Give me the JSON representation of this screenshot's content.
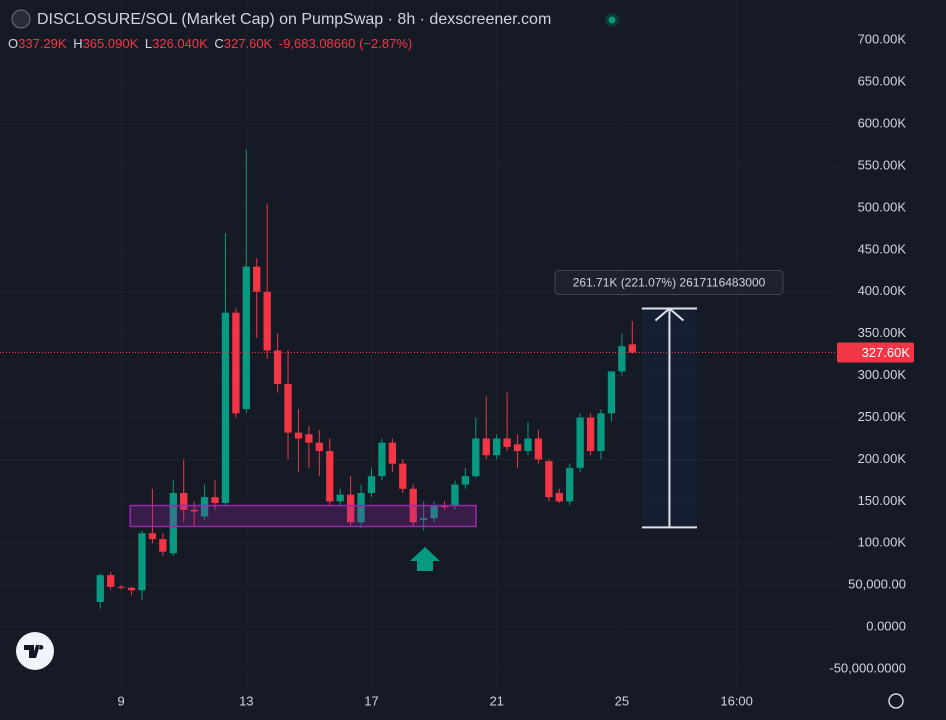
{
  "chart_data": {
    "type": "candlestick",
    "title": "DISCLOSURE/SOL (Market Cap) on PumpSwap · 8h · dexscreener.com",
    "ohlc_header": {
      "o_key": "O",
      "o": "337.29K",
      "h_key": "H",
      "h": "365.090K",
      "l_key": "L",
      "l": "326.040K",
      "c_key": "C",
      "c": "327.60K",
      "change": "-9,683.08660 (−2.87%)"
    },
    "up_color": "#089981",
    "down_color": "#f23645",
    "grid": true,
    "x": [
      8.333,
      8.667,
      9,
      9.333,
      9.667,
      10,
      10.333,
      10.667,
      11,
      11.333,
      11.667,
      12,
      12.333,
      12.667,
      13,
      13.333,
      13.667,
      14,
      14.333,
      14.667,
      15,
      15.333,
      15.667,
      16,
      16.333,
      16.667,
      17,
      17.333,
      17.667,
      18,
      18.333,
      18.667,
      19,
      19.333,
      19.667,
      20,
      20.333,
      20.667,
      21,
      21.333,
      21.667,
      22,
      22.333,
      22.667,
      23,
      23.333,
      23.667,
      24,
      24.333,
      24.667,
      25,
      25.333
    ],
    "open": [
      30000,
      62000,
      48000,
      47000,
      44000,
      112000,
      105000,
      88000,
      160000,
      140000,
      132000,
      155000,
      148000,
      375000,
      260000,
      430000,
      400000,
      330000,
      290000,
      232000,
      230000,
      220000,
      210000,
      150000,
      158000,
      125000,
      160000,
      180000,
      220000,
      195000,
      165000,
      128000,
      130000,
      145000,
      145000,
      170000,
      180000,
      225000,
      205000,
      225000,
      218000,
      210000,
      225000,
      198000,
      160000,
      150000,
      190000,
      250000,
      210000,
      255000,
      305000,
      337290
    ],
    "high": [
      64000,
      66000,
      50000,
      48000,
      115000,
      165000,
      112000,
      175000,
      200000,
      150000,
      170000,
      175000,
      470000,
      380000,
      570000,
      440000,
      505000,
      350000,
      330000,
      260000,
      240000,
      235000,
      225000,
      165000,
      180000,
      170000,
      190000,
      225000,
      225000,
      200000,
      170000,
      150000,
      150000,
      150000,
      175000,
      190000,
      250000,
      275000,
      230000,
      280000,
      230000,
      245000,
      235000,
      200000,
      165000,
      195000,
      255000,
      255000,
      260000,
      305000,
      350000,
      365090
    ],
    "low": [
      22000,
      45000,
      45000,
      38000,
      32000,
      100000,
      85000,
      85000,
      125000,
      120000,
      128000,
      140000,
      145000,
      250000,
      255000,
      345000,
      320000,
      280000,
      200000,
      185000,
      190000,
      180000,
      145000,
      145000,
      120000,
      118000,
      155000,
      175000,
      185000,
      160000,
      120000,
      115000,
      125000,
      140000,
      140000,
      165000,
      178000,
      200000,
      200000,
      210000,
      190000,
      205000,
      195000,
      150000,
      148000,
      145000,
      185000,
      205000,
      200000,
      245000,
      300000,
      326040
    ],
    "close": [
      62000,
      48000,
      47000,
      44000,
      112000,
      105000,
      90000,
      160000,
      140000,
      138000,
      155000,
      148000,
      375000,
      255000,
      430000,
      400000,
      330000,
      290000,
      232000,
      225000,
      220000,
      210000,
      150000,
      158000,
      125000,
      160000,
      180000,
      220000,
      195000,
      165000,
      125000,
      130000,
      145000,
      143000,
      170000,
      180000,
      225000,
      205000,
      225000,
      215000,
      210000,
      225000,
      200000,
      155000,
      150000,
      190000,
      250000,
      210000,
      255000,
      305000,
      335000,
      327600
    ],
    "last_price": {
      "value": 327600,
      "label": "327.60K"
    },
    "zone": {
      "x": [
        9.29,
        20.34
      ],
      "y": [
        120000,
        145000
      ]
    },
    "measure": {
      "x": [
        25.64,
        27.4
      ],
      "y": [
        119000,
        380000
      ],
      "label": "261.71K (221.07%) 2617116483000"
    },
    "xlim": [
      5.13,
      31.81
    ],
    "xticks": [
      {
        "value": 9,
        "label": "9"
      },
      {
        "value": 13,
        "label": "13"
      },
      {
        "value": 17,
        "label": "17"
      },
      {
        "value": 21,
        "label": "21"
      },
      {
        "value": 25,
        "label": "25"
      },
      {
        "value": 28.667,
        "label": "16:00"
      }
    ],
    "ylim": [
      -75000,
      748000
    ],
    "yticks": [
      {
        "value": -50000,
        "label": "-50,000.0000"
      },
      {
        "value": 0,
        "label": "0.0000"
      },
      {
        "value": 50000,
        "label": "50,000.00"
      },
      {
        "value": 100000,
        "label": "100.00K"
      },
      {
        "value": 150000,
        "label": "150.00K"
      },
      {
        "value": 200000,
        "label": "200.00K"
      },
      {
        "value": 250000,
        "label": "250.00K"
      },
      {
        "value": 300000,
        "label": "300.00K"
      },
      {
        "value": 350000,
        "label": "350.00K"
      },
      {
        "value": 400000,
        "label": "400.00K"
      },
      {
        "value": 450000,
        "label": "450.00K"
      },
      {
        "value": 500000,
        "label": "500.00K"
      },
      {
        "value": 550000,
        "label": "550.00K"
      },
      {
        "value": 600000,
        "label": "600.00K"
      },
      {
        "value": 650000,
        "label": "650.00K"
      },
      {
        "value": 700000,
        "label": "700.00K"
      }
    ]
  }
}
